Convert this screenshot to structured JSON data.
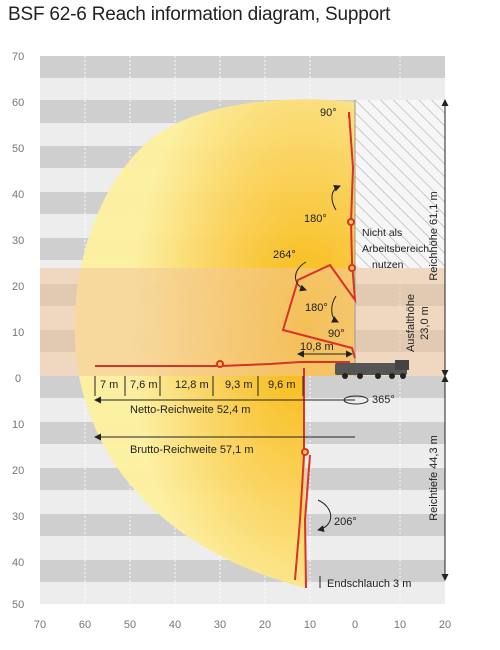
{
  "title": "BSF 62-6 Reach information diagram, Support",
  "axis": {
    "y_top": [
      "70",
      "60",
      "50",
      "40",
      "30",
      "20",
      "10",
      "0"
    ],
    "y_bottom": [
      "10",
      "20",
      "30",
      "40",
      "50"
    ],
    "x": [
      "70",
      "60",
      "50",
      "40",
      "30",
      "20",
      "10",
      "0",
      "10",
      "20"
    ]
  },
  "segments": [
    "7 m",
    "7,6 m",
    "12,8 m",
    "9,3 m",
    "9,6 m",
    "10,8 m"
  ],
  "angles": [
    "90°",
    "180°",
    "264°",
    "180°",
    "90°",
    "206°",
    "365°"
  ],
  "labels": {
    "not_usable": [
      "Nicht als",
      "Arbeitsbereich",
      "nutzen"
    ],
    "net_reach": "Netto-Reichweite 52,4 m",
    "gross_reach": "Brutto-Reichweite 57,1 m",
    "reach_height": "Reichhöhe 61,1 m",
    "unfold_height": [
      "Ausfalthöhe",
      "23,0 m"
    ],
    "reach_depth": "Reichtiefe 44,3 m",
    "end_hose": "Endschlauch 3 m"
  },
  "colors": {
    "envelope_light": "#fdf0a0",
    "envelope_dark": "#f7b500",
    "boom": "#d9322a",
    "hatch_bg": "#f4f4f4",
    "unfold_zone": "#f2c79a",
    "grid_dark": "#cfcfcf",
    "grid_light": "#ededed"
  }
}
